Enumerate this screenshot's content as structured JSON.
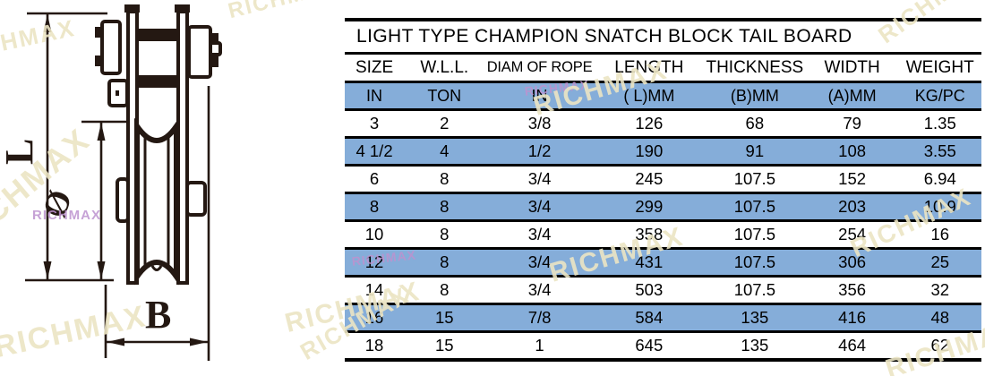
{
  "watermark": {
    "text": "RICHMAX",
    "cream": "#ece5c4",
    "purple": "#bd92cf"
  },
  "diagram": {
    "ink": "#241812",
    "labels": {
      "length": "L",
      "diameter": "Ø",
      "width": "B"
    }
  },
  "table": {
    "title": "LIGHT TYPE CHAMPION SNATCH BLOCK TAIL BOARD",
    "highlight": "#85add9",
    "columns": [
      "SIZE",
      "W.L.L.",
      "DIAM OF ROPE",
      "LENGTH",
      "THICKNESS",
      "WIDTH",
      "WEIGHT"
    ],
    "units": [
      "IN",
      "TON",
      "IN",
      "( L)MM",
      "(B)MM",
      "(A)MM",
      "KG/PC"
    ],
    "rows": [
      [
        "3",
        "2",
        "3/8",
        "126",
        "68",
        "79",
        "1.35"
      ],
      [
        "4 1/2",
        "4",
        "1/2",
        "190",
        "91",
        "108",
        "3.55"
      ],
      [
        "6",
        "8",
        "3/4",
        "245",
        "107.5",
        "152",
        "6.94"
      ],
      [
        "8",
        "8",
        "3/4",
        "299",
        "107.5",
        "203",
        "10.9"
      ],
      [
        "10",
        "8",
        "3/4",
        "358",
        "107.5",
        "254",
        "16"
      ],
      [
        "12",
        "8",
        "3/4",
        "431",
        "107.5",
        "306",
        "25"
      ],
      [
        "14",
        "8",
        "3/4",
        "503",
        "107.5",
        "356",
        "32"
      ],
      [
        "16",
        "15",
        "7/8",
        "584",
        "135",
        "416",
        "48"
      ],
      [
        "18",
        "15",
        "1",
        "645",
        "135",
        "464",
        "62"
      ]
    ]
  }
}
